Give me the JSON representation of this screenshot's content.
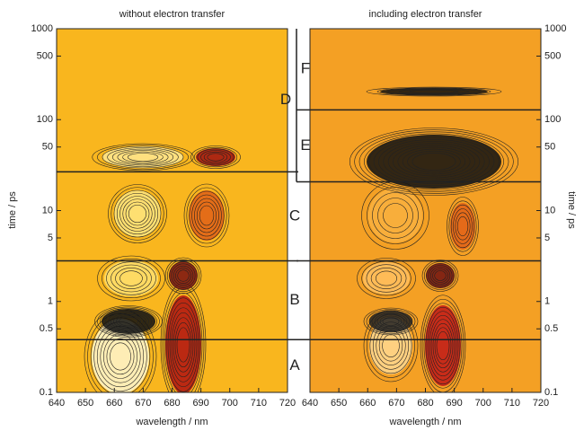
{
  "chart_data": [
    {
      "type": "contour",
      "title": "without electron transfer",
      "x_label": "wavelength / nm",
      "y_label": "time / ps",
      "xlim": [
        640,
        720
      ],
      "xticks": [
        640,
        650,
        660,
        670,
        680,
        690,
        700,
        710,
        720
      ],
      "ylim": [
        0.1,
        1000
      ],
      "yticks": [
        0.1,
        0.5,
        1,
        5,
        10,
        50,
        100,
        500,
        1000
      ],
      "log_y": true,
      "color": "#f9b61e",
      "boundaries": [
        0.38,
        2.8,
        26.7
      ],
      "regions": [
        "A",
        "B",
        "C",
        "D"
      ]
    },
    {
      "type": "contour",
      "title": "including electron transfer",
      "x_label": "wavelength / nm",
      "y_label": "time / ps",
      "xlim": [
        640,
        720
      ],
      "xticks": [
        640,
        650,
        660,
        670,
        680,
        690,
        700,
        710,
        720
      ],
      "ylim": [
        0.1,
        1000
      ],
      "yticks": [
        0.1,
        0.5,
        1,
        5,
        10,
        50,
        100,
        500,
        1000
      ],
      "log_y": true,
      "color": "#f4a024",
      "boundaries": [
        0.38,
        2.8,
        20.7,
        128
      ],
      "regions": [
        "A",
        "B",
        "C",
        "E",
        "F"
      ]
    }
  ]
}
